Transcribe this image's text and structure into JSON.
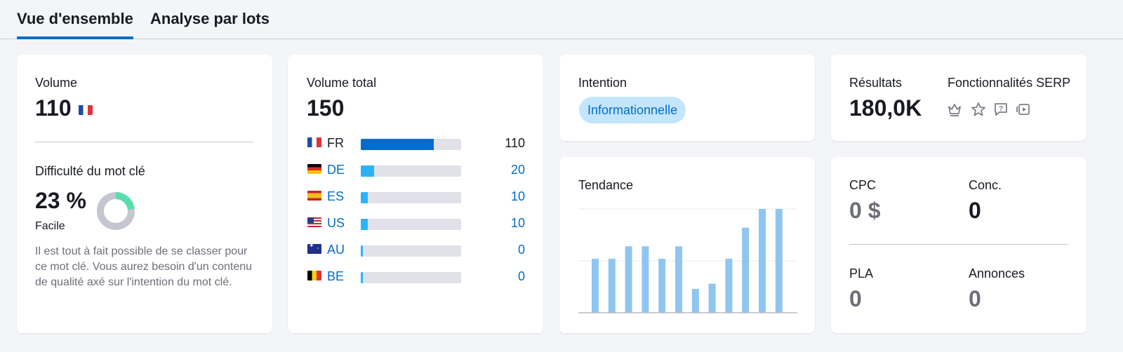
{
  "tabs": [
    {
      "label": "Vue d'ensemble",
      "active": true
    },
    {
      "label": "Analyse par lots",
      "active": false
    }
  ],
  "volume_card": {
    "label": "Volume",
    "value": "110",
    "flag_icon": "flag-fr-icon",
    "difficulty_label": "Difficulté du mot clé",
    "difficulty_value": "23 %",
    "difficulty_level": "Facile",
    "difficulty_percent": 23,
    "difficulty_color": "#59ddaa",
    "description": "Il est tout à fait possible de se classer pour ce mot clé. Vous aurez besoin d'un contenu de qualité axé sur l'intention du mot clé."
  },
  "total_card": {
    "label": "Volume total",
    "value": "150",
    "countries": [
      {
        "code": "FR",
        "value": "110",
        "share": 0.73,
        "flag": "flag-fr-icon"
      },
      {
        "code": "DE",
        "value": "20",
        "share": 0.13,
        "flag": "flag-de-icon"
      },
      {
        "code": "ES",
        "value": "10",
        "share": 0.07,
        "flag": "flag-es-icon"
      },
      {
        "code": "US",
        "value": "10",
        "share": 0.07,
        "flag": "flag-us-icon"
      },
      {
        "code": "AU",
        "value": "0",
        "share": 0.02,
        "flag": "flag-au-icon"
      },
      {
        "code": "BE",
        "value": "0",
        "share": 0.02,
        "flag": "flag-be-icon"
      }
    ]
  },
  "intent_card": {
    "label": "Intention",
    "badge": "Informationnelle"
  },
  "trend_card": {
    "label": "Tendance"
  },
  "chart_data": {
    "type": "bar",
    "title": "Tendance",
    "values": [
      0.52,
      0.52,
      0.64,
      0.64,
      0.52,
      0.64,
      0.23,
      0.28,
      0.52,
      0.82,
      1.0,
      1.0
    ],
    "color": "#8fc6f0",
    "grid": true
  },
  "results_card": {
    "results_label": "Résultats",
    "results_value": "180,0K",
    "serp_label": "Fonctionnalités SERP",
    "serp_icons": [
      "crown-icon",
      "star-icon",
      "faq-icon",
      "video-icon"
    ]
  },
  "metrics_card": {
    "cpc_label": "CPC",
    "cpc_value": "0 $",
    "conc_label": "Conc.",
    "conc_value": "0",
    "pla_label": "PLA",
    "pla_value": "0",
    "ads_label": "Annonces",
    "ads_value": "0"
  }
}
